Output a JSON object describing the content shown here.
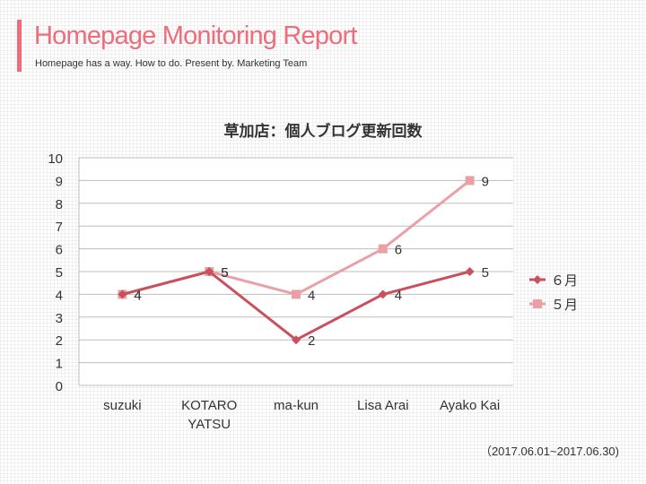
{
  "header": {
    "title": "Homepage Monitoring Report",
    "subtitle": "Homepage has a way. How to do. Present by. Marketing Team"
  },
  "footer": {
    "period": "（2017.06.01~2017.06.30)"
  },
  "colors": {
    "accent": "#ec6d7c",
    "june": "#c9505e",
    "may": "#eba0a5",
    "grid": "#bdbdbd"
  },
  "chart_data": {
    "type": "line",
    "title": "草加店：個人ブログ更新回数",
    "categories": [
      [
        "suzuki"
      ],
      [
        "KOTARO",
        "YATSU"
      ],
      [
        "ma-kun"
      ],
      [
        "Lisa Arai"
      ],
      [
        "Ayako Kai"
      ]
    ],
    "series": [
      {
        "name": "６月",
        "values": [
          4,
          5,
          2,
          4,
          5
        ],
        "marker": "diamond",
        "color": "#c9505e"
      },
      {
        "name": "５月",
        "values": [
          4,
          5,
          4,
          6,
          9
        ],
        "marker": "square",
        "color": "#eba0a5"
      }
    ],
    "ylim": [
      0,
      10
    ],
    "yticks": [
      0,
      1,
      2,
      3,
      4,
      5,
      6,
      7,
      8,
      9,
      10
    ],
    "grid": true,
    "legend": "right"
  }
}
